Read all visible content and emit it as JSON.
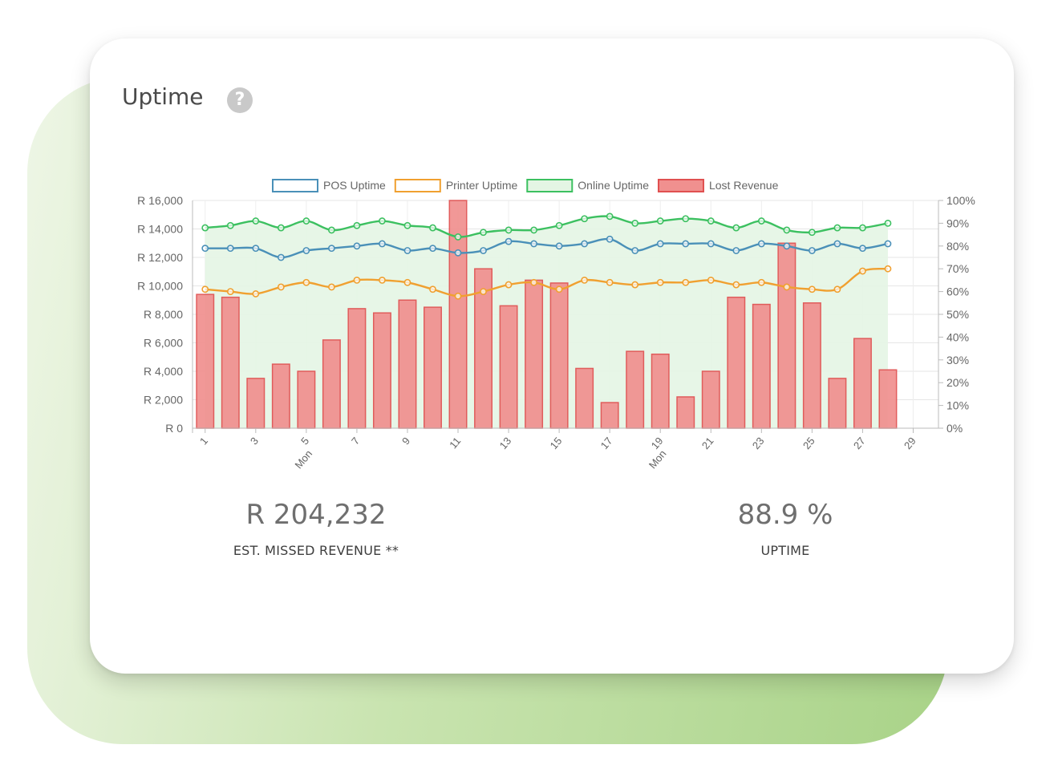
{
  "widget": {
    "title": "Uptime",
    "help_icon": "?"
  },
  "stats": {
    "missed_revenue_value": "R 204,232",
    "missed_revenue_label": "EST. MISSED REVENUE **",
    "uptime_value": "88.9 %",
    "uptime_label": "UPTIME"
  },
  "chart_data": {
    "type": "bar",
    "x": [
      1,
      2,
      3,
      4,
      5,
      6,
      7,
      8,
      9,
      10,
      11,
      12,
      13,
      14,
      15,
      16,
      17,
      18,
      19,
      20,
      21,
      22,
      23,
      24,
      25,
      26,
      27,
      28
    ],
    "x_tick_labels": [
      "1",
      "3",
      "5",
      "7",
      "9",
      "11",
      "13",
      "15",
      "17",
      "19",
      "21",
      "23",
      "25",
      "27",
      "29"
    ],
    "x_day_labels": [
      {
        "at": 5,
        "label": "Mon"
      },
      {
        "at": 19,
        "label": "Mon"
      }
    ],
    "y_left_ticks": [
      "R 0",
      "R 2,000",
      "R 4,000",
      "R 6,000",
      "R 8,000",
      "R 10,000",
      "R 12,000",
      "R 14,000",
      "R 16,000"
    ],
    "y_right_ticks": [
      "0%",
      "10%",
      "20%",
      "30%",
      "40%",
      "50%",
      "60%",
      "70%",
      "80%",
      "90%",
      "100%"
    ],
    "ylim_left": [
      0,
      16000
    ],
    "ylim_right": [
      0,
      100
    ],
    "grid": true,
    "legend_position": "top",
    "series": [
      {
        "name": "POS Uptime",
        "type": "line",
        "axis": "right",
        "color": "#4a90b8",
        "values": [
          79,
          79,
          79,
          75,
          78,
          79,
          80,
          81,
          78,
          79,
          77,
          78,
          82,
          81,
          80,
          81,
          83,
          78,
          81,
          81,
          81,
          78,
          81,
          80,
          78,
          81,
          79,
          81
        ]
      },
      {
        "name": "Printer Uptime",
        "type": "line",
        "axis": "right",
        "color": "#f0a030",
        "values": [
          61,
          60,
          59,
          62,
          64,
          62,
          65,
          65,
          64,
          61,
          58,
          60,
          63,
          64,
          61,
          65,
          64,
          63,
          64,
          64,
          65,
          63,
          64,
          62,
          61,
          61,
          69,
          70
        ]
      },
      {
        "name": "Online Uptime",
        "type": "line",
        "axis": "right",
        "color": "#3cc060",
        "fill": "#e4f5e4",
        "values": [
          88,
          89,
          91,
          88,
          91,
          87,
          89,
          91,
          89,
          88,
          84,
          86,
          87,
          87,
          89,
          92,
          93,
          90,
          91,
          92,
          91,
          88,
          91,
          87,
          86,
          88,
          88,
          90
        ]
      },
      {
        "name": "Lost Revenue",
        "type": "bar",
        "axis": "left",
        "color": "#f0908f",
        "border": "#e05050",
        "values": [
          9400,
          9200,
          3500,
          4500,
          4000,
          6200,
          8400,
          8100,
          9000,
          8500,
          16000,
          11200,
          8600,
          10400,
          10200,
          4200,
          1800,
          5400,
          5200,
          2200,
          4000,
          9200,
          8700,
          13000,
          8800,
          3500,
          6300,
          4100
        ]
      }
    ]
  }
}
